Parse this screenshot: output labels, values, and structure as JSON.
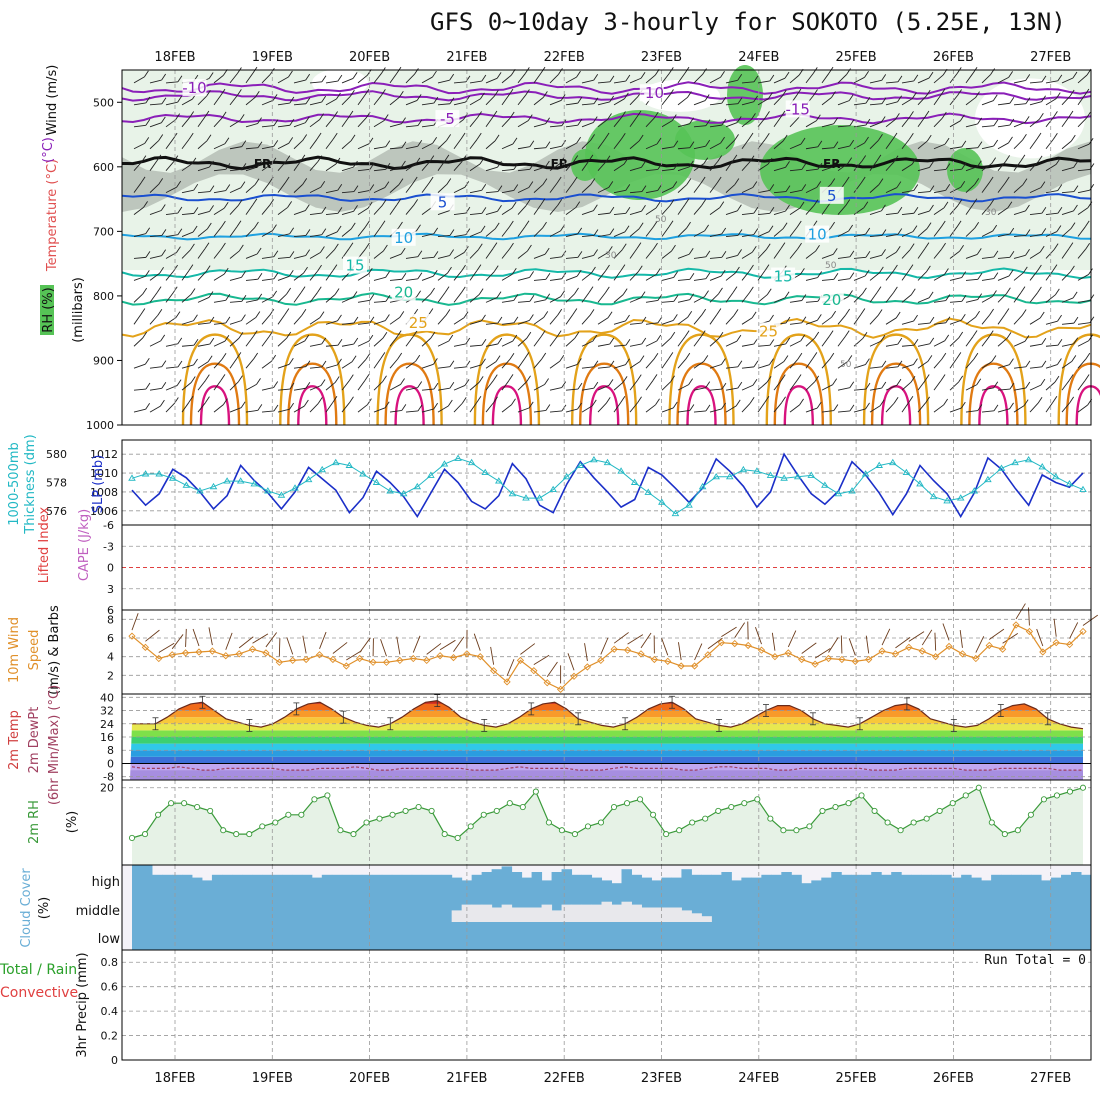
{
  "title": "GFS 0~10day 3-hourly for SOKOTO (5.25E, 13N)",
  "colors": {
    "rh_green": "#56c356",
    "rh_light": "#e8f3e8",
    "rh_gray": "#b5bdb5",
    "temp_purple": "#8a1fb8",
    "temp_blue": "#1a4fd0",
    "temp_lightblue": "#1ea0e0",
    "temp_teal": "#15b8a8",
    "temp_green": "#18b890",
    "temp_orange": "#e3a21a",
    "temp_darkorange": "#e07a12",
    "temp_magenta": "#d8127e",
    "slp": "#1b2fc8",
    "thickness": "#22b8c4",
    "wind10": "#e0902a",
    "rh2m": "#3a9a3a",
    "cloud": "#6aaed6",
    "cloud_bg": "#f4f2f8"
  },
  "chart_data": [
    {
      "panel": "upper-air",
      "type": "heatmap",
      "xlabels": [
        "18FEB",
        "19FEB",
        "20FEB",
        "21FEB",
        "22FEB",
        "23FEB",
        "24FEB",
        "25FEB",
        "26FEB",
        "27FEB"
      ],
      "ylabel": "(millibars)",
      "left_labels": [
        "Wind (m/s)",
        "Temperature (°C)",
        "RH (%)"
      ],
      "y_ticks": [
        500,
        600,
        700,
        800,
        900,
        1000
      ],
      "ylim": [
        450,
        1000
      ],
      "isotherm_labels": [
        {
          "text": "-10",
          "day": 0.2,
          "p": 478
        },
        {
          "text": "-10",
          "day": 4.9,
          "p": 486
        },
        {
          "text": "-15",
          "day": 6.4,
          "p": 511
        },
        {
          "text": "-5",
          "day": 2.8,
          "p": 526
        },
        {
          "text": "FR",
          "day": 0.9,
          "p": 594
        },
        {
          "text": "FR",
          "day": 3.95,
          "p": 594
        },
        {
          "text": "FR",
          "day": 6.75,
          "p": 594
        },
        {
          "text": "5",
          "day": 2.75,
          "p": 655
        },
        {
          "text": "5",
          "day": 6.75,
          "p": 645
        },
        {
          "text": "10",
          "day": 2.35,
          "p": 710
        },
        {
          "text": "10",
          "day": 6.6,
          "p": 705
        },
        {
          "text": "15",
          "day": 1.85,
          "p": 753
        },
        {
          "text": "15",
          "day": 6.25,
          "p": 770
        },
        {
          "text": "20",
          "day": 2.35,
          "p": 795
        },
        {
          "text": "20",
          "day": 6.75,
          "p": 806
        },
        {
          "text": "25",
          "day": 2.5,
          "p": 842
        },
        {
          "text": "25",
          "day": 6.1,
          "p": 855
        }
      ],
      "rh_small_labels": [
        "50",
        "30",
        "50",
        "30",
        "50"
      ]
    },
    {
      "panel": "slp-thickness",
      "type": "line",
      "left_label_1": "1000-500mb",
      "left_label_2": "Thickness (dm)",
      "right_label": "SLP (mb)",
      "y_ticks_left": [
        576,
        578,
        580
      ],
      "y_ticks_right": [
        1006,
        1008,
        1010,
        1012
      ],
      "series": [
        {
          "name": "SLP (mb)",
          "values": [
            1008.2,
            1006.6,
            1007.8,
            1010.4,
            1009.5,
            1008.0,
            1006.2,
            1007.6,
            1010.8,
            1009.2,
            1007.9,
            1006.2,
            1008.0,
            1010.6,
            1009.4,
            1008.2,
            1005.8,
            1007.4,
            1010.2,
            1009.0,
            1007.5,
            1005.4,
            1007.9,
            1010.4,
            1009.0,
            1007.0,
            1006.2,
            1007.6,
            1011.0,
            1009.4,
            1006.6,
            1005.8,
            1008.8,
            1011.2,
            1009.5,
            1008.0,
            1006.4,
            1007.2,
            1010.6,
            1009.8,
            1008.4,
            1006.9,
            1008.4,
            1011.5,
            1010.2,
            1008.6,
            1006.4,
            1008.0,
            1012.0,
            1009.8,
            1007.8,
            1006.7,
            1008.1,
            1011.2,
            1009.8,
            1007.9,
            1005.6,
            1007.8,
            1010.8,
            1009.2,
            1007.8,
            1005.4,
            1007.9,
            1011.6,
            1010.4,
            1008.4,
            1006.6,
            1009.8,
            1009.0,
            1008.5,
            1010.0
          ]
        },
        {
          "name": "1000-500mb Thickness (dm)",
          "values": [
            578.3,
            578.6,
            578.6,
            578.3,
            577.8,
            577.4,
            577.7,
            578.1,
            578.1,
            577.9,
            577.4,
            577.1,
            577.6,
            578.2,
            578.9,
            579.4,
            579.2,
            578.6,
            578.0,
            577.4,
            577.2,
            577.7,
            578.5,
            579.3,
            579.7,
            579.4,
            578.7,
            578.1,
            577.2,
            576.9,
            576.9,
            577.5,
            578.4,
            579.2,
            579.6,
            579.4,
            578.8,
            578.0,
            577.3,
            576.6,
            575.8,
            576.4,
            577.7,
            578.4,
            578.4,
            578.9,
            578.8,
            578.5,
            578.3,
            578.4,
            578.5,
            577.8,
            577.2,
            577.4,
            578.6,
            579.2,
            579.4,
            578.7,
            577.9,
            577.0,
            576.7,
            576.9,
            577.4,
            578.2,
            579.0,
            579.4,
            579.6,
            579.1,
            578.4,
            577.9,
            577.5
          ]
        }
      ]
    },
    {
      "panel": "stability",
      "type": "line",
      "left_label_1": "Lifted Index",
      "left_label_2": "CAPE (J/kg)",
      "y_ticks": [
        "-6",
        "-3",
        "0",
        "3",
        "6"
      ],
      "series": []
    },
    {
      "panel": "wind10m",
      "type": "line",
      "left_label_1": "10m Wind",
      "left_label_2": "Speed",
      "left_label_3": "(m/s) & Barbs",
      "y_ticks": [
        2,
        4,
        6,
        8
      ],
      "ylim": [
        0,
        9
      ],
      "series": [
        {
          "name": "10m Wind Speed",
          "values": [
            6.2,
            5.0,
            3.8,
            4.2,
            4.4,
            4.5,
            4.6,
            4.1,
            4.3,
            4.8,
            4.4,
            3.4,
            3.6,
            3.7,
            4.2,
            3.7,
            3.0,
            3.8,
            3.4,
            3.4,
            3.6,
            3.8,
            3.6,
            4.1,
            3.9,
            4.3,
            4.0,
            2.5,
            1.3,
            3.6,
            2.5,
            1.2,
            0.5,
            1.9,
            2.9,
            3.6,
            4.8,
            4.7,
            4.3,
            3.7,
            3.5,
            3.0,
            3.0,
            4.2,
            5.5,
            5.4,
            5.2,
            4.7,
            4.0,
            4.4,
            3.7,
            3.2,
            3.8,
            3.7,
            3.5,
            3.7,
            4.6,
            4.3,
            5.0,
            4.6,
            4.0,
            5.1,
            4.3,
            3.8,
            5.2,
            4.8,
            7.4,
            6.7,
            4.5,
            5.5,
            5.3,
            6.7
          ]
        }
      ]
    },
    {
      "panel": "temp2m",
      "type": "area",
      "left_label_1": "2m Temp",
      "left_label_2": "2m DewPt",
      "left_label_3": "(6hr Min/Max) (°C)",
      "y_ticks": [
        -8,
        0,
        8,
        16,
        24,
        32,
        40
      ],
      "ylim": [
        -10,
        42
      ],
      "series": [
        {
          "name": "2m Temp",
          "values": [
            24,
            24,
            24,
            28,
            33,
            36,
            37,
            32,
            27,
            25,
            23,
            22,
            24,
            28,
            33,
            36,
            37,
            33,
            28,
            25,
            23,
            22,
            24,
            28,
            33,
            37,
            38,
            34,
            28,
            25,
            23,
            22,
            24,
            28,
            33,
            36,
            37,
            33,
            27,
            25,
            23,
            22,
            24,
            28,
            33,
            36,
            37,
            33,
            27,
            25,
            23,
            22,
            24,
            28,
            32,
            35,
            35,
            32,
            27,
            24,
            23,
            22,
            24,
            28,
            32,
            35,
            36,
            33,
            27,
            25,
            23,
            22,
            23,
            27,
            32,
            35,
            36,
            33,
            27,
            24,
            22,
            21
          ]
        },
        {
          "name": "2m DewPt",
          "values": [
            -2,
            -3,
            -3,
            -3,
            -2,
            -3,
            -4,
            -4,
            -3,
            -3,
            -3,
            -3,
            -3,
            -4,
            -4,
            -4,
            -3,
            -3,
            -3,
            -2,
            -3,
            -4,
            -4,
            -3,
            -3,
            -3,
            -3,
            -3,
            -3,
            -4,
            -4,
            -4,
            -3,
            -2,
            -3,
            -3,
            -3,
            -3,
            -4,
            -4,
            -4,
            -3,
            -2,
            -3,
            -3,
            -3,
            -3,
            -4,
            -4,
            -3,
            -2,
            -2,
            -3,
            -3,
            -3,
            -4,
            -4,
            -3,
            -3,
            -3,
            -3,
            -3,
            -3,
            -4,
            -4,
            -4,
            -3,
            -3,
            -3,
            -3,
            -3,
            -4,
            -4,
            -4,
            -3,
            -3,
            -3,
            -3,
            -3,
            -4,
            -4,
            -4
          ]
        }
      ]
    },
    {
      "panel": "rh2m",
      "type": "area",
      "left_label_1": "2m RH",
      "left_label_2": "(%)",
      "y_ticks": [
        20
      ],
      "ylim": [
        0,
        22
      ],
      "series": [
        {
          "name": "2m RH",
          "values": [
            7,
            8,
            13,
            16,
            16,
            15,
            14,
            9,
            8,
            8,
            10,
            11,
            13,
            13,
            17,
            18,
            9,
            8,
            11,
            12,
            13,
            14,
            15,
            14,
            8,
            7,
            10,
            13,
            14,
            16,
            15,
            19,
            11,
            9,
            8,
            10,
            11,
            15,
            16,
            17,
            13,
            8,
            9,
            11,
            12,
            14,
            15,
            16,
            17,
            12,
            9,
            9,
            10,
            14,
            15,
            16,
            18,
            14,
            11,
            9,
            11,
            12,
            14,
            16,
            18,
            20,
            11,
            8,
            9,
            13,
            17,
            18,
            19,
            20
          ]
        }
      ]
    },
    {
      "panel": "cloud",
      "type": "area",
      "left_label_1": "Cloud Cover",
      "left_label_2": "(%)",
      "y_ticks": [
        "high",
        "middle",
        "low"
      ],
      "series": [
        {
          "name": "high cloud",
          "values": [
            0.9,
            0.9,
            0.4,
            0.4,
            0.4,
            0.4,
            0.3,
            0.2,
            0.4,
            0.4,
            0.4,
            0.4,
            0.4,
            0.4,
            0.4,
            0.4,
            0.4,
            0.4,
            0.3,
            0.4,
            0.4,
            0.4,
            0.4,
            0.4,
            0.4,
            0.4,
            0.4,
            0.4,
            0.4,
            0.4,
            0.4,
            0.4,
            0.3,
            0.2,
            0.4,
            0.5,
            0.6,
            0.7,
            0.5,
            0.3,
            0.5,
            0.2,
            0.5,
            0.6,
            0.4,
            0.4,
            0.3,
            0.2,
            0.1,
            0.6,
            0.4,
            0.3,
            0.2,
            0.3,
            0.3,
            0.6,
            0.4,
            0.4,
            0.4,
            0.5,
            0.2,
            0.3,
            0.3,
            0.4,
            0.4,
            0.5,
            0.4,
            0.1,
            0.2,
            0.3,
            0.5,
            0.4,
            0.4,
            0.4,
            0.5,
            0.4,
            0.5,
            0.4,
            0.4,
            0.4,
            0.4,
            0.4,
            0.3,
            0.4,
            0.3,
            0.2,
            0.4,
            0.4,
            0.4,
            0.4,
            0.4,
            0.2,
            0.3,
            0.4,
            0.5,
            0.4
          ]
        },
        {
          "name": "middle cloud",
          "values": [
            0,
            0,
            0,
            0,
            0,
            0,
            0,
            0,
            0,
            0,
            0,
            0,
            0,
            0,
            0,
            0,
            0,
            0,
            0,
            0,
            0,
            0,
            0,
            0,
            0,
            0,
            0,
            0,
            0,
            0,
            0,
            0,
            0.4,
            0.6,
            0.6,
            0.6,
            0.5,
            0.6,
            0.5,
            0.5,
            0.5,
            0.6,
            0.4,
            0.6,
            0.6,
            0.6,
            0.6,
            0.7,
            0.6,
            0.7,
            0.6,
            0.5,
            0.5,
            0.5,
            0.5,
            0.4,
            0.3,
            0.2,
            0,
            0,
            0,
            0,
            0,
            0,
            0,
            0,
            0,
            0,
            0,
            0,
            0,
            0,
            0,
            0,
            0,
            0,
            0,
            0,
            0,
            0,
            0,
            0,
            0,
            0,
            0
          ]
        }
      ]
    },
    {
      "panel": "precip",
      "type": "bar",
      "left_label_1": "Total / Rain",
      "left_label_2": "Convective",
      "left_label_3": "3hr Precip (mm)",
      "y_ticks": [
        0,
        0.2,
        0.4,
        0.6,
        0.8
      ],
      "ylim": [
        0,
        0.9
      ],
      "run_total": "Run Total = 0",
      "xlabels": [
        "18FEB",
        "19FEB",
        "20FEB",
        "21FEB",
        "22FEB",
        "23FEB",
        "24FEB",
        "25FEB",
        "26FEB",
        "27FEB"
      ],
      "series": []
    }
  ]
}
